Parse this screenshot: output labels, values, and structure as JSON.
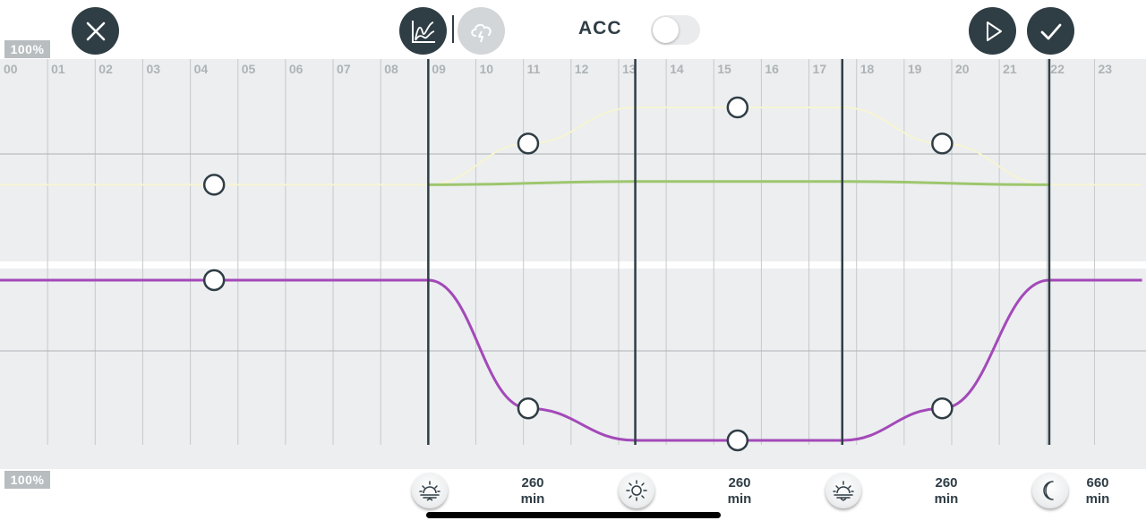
{
  "header": {
    "acc_label": "ACC",
    "acc_enabled": false
  },
  "icons": {
    "close": "close-icon",
    "chart_mode": "line-chart-icon",
    "weather_mode": "cloud-lightning-icon",
    "play": "play-icon",
    "confirm": "check-icon"
  },
  "scale": {
    "top_label": "100%",
    "bottom_label": "100%"
  },
  "hours": [
    "00",
    "01",
    "02",
    "03",
    "04",
    "05",
    "06",
    "07",
    "08",
    "09",
    "10",
    "11",
    "12",
    "13",
    "14",
    "15",
    "16",
    "17",
    "18",
    "19",
    "20",
    "21",
    "22",
    "23"
  ],
  "colors": {
    "grid_bg": "#eceef0",
    "white_channel": "#f7f5d2",
    "green_channel": "#9dc66e",
    "purple_channel": "#a349b8",
    "marker_stroke": "#2f3d45",
    "phase_line": "#2f3d45",
    "dark_button": "#2f3d45"
  },
  "chart_data": {
    "type": "line",
    "x_unit": "hour",
    "xlim": [
      0,
      24
    ],
    "phase_boundaries": [
      9,
      13.35,
      17.7,
      22.05
    ],
    "upper_panel": {
      "ylabel": "100%",
      "ylim": [
        0,
        100
      ],
      "series": [
        {
          "color": "#f7f5d2",
          "points": [
            [
              0,
              40
            ],
            [
              9,
              40
            ],
            [
              11.1,
              72
            ],
            [
              13.35,
              100
            ],
            [
              17.7,
              100
            ],
            [
              19.8,
              72
            ],
            [
              22.05,
              40
            ],
            [
              24,
              40
            ]
          ]
        },
        {
          "color": "#9dc66e",
          "points": [
            [
              9,
              40
            ],
            [
              13.35,
              42.5
            ],
            [
              17.7,
              42.5
            ],
            [
              22.05,
              40
            ]
          ]
        }
      ],
      "markers": [
        [
          4.5,
          40
        ],
        [
          11.1,
          72
        ],
        [
          15.5,
          100
        ],
        [
          19.8,
          72
        ]
      ]
    },
    "lower_panel": {
      "ylabel": "100%",
      "ylim": [
        0,
        100
      ],
      "series": [
        {
          "color": "#a349b8",
          "points": [
            [
              0,
              100
            ],
            [
              9,
              100
            ],
            [
              11.1,
              20
            ],
            [
              13.35,
              0
            ],
            [
              17.7,
              0
            ],
            [
              19.8,
              20
            ],
            [
              22.05,
              100
            ],
            [
              24,
              100
            ]
          ]
        }
      ],
      "markers": [
        [
          4.5,
          100
        ],
        [
          11.1,
          20
        ],
        [
          15.5,
          0
        ],
        [
          19.8,
          20
        ]
      ]
    }
  },
  "phases": [
    {
      "icon": "sunrise-icon",
      "duration_value": "260",
      "duration_unit": "min"
    },
    {
      "icon": "sun-icon",
      "duration_value": "260",
      "duration_unit": "min"
    },
    {
      "icon": "sunset-icon",
      "duration_value": "260",
      "duration_unit": "min"
    },
    {
      "icon": "moon-icon",
      "duration_value": "660",
      "duration_unit": "min"
    }
  ]
}
